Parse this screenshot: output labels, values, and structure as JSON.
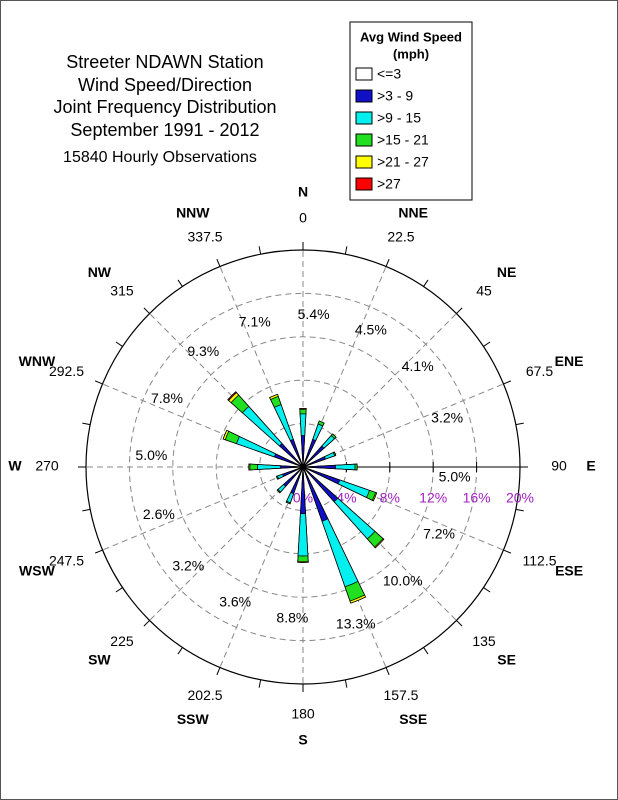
{
  "chart_data": {
    "type": "windrose",
    "title": [
      "Streeter NDAWN Station",
      "Wind Speed/Direction",
      "Joint Frequency Distribution",
      "September 1991 - 2012"
    ],
    "subtitle": "15840 Hourly Observations",
    "legend_title": [
      "Avg Wind Speed",
      "(mph)"
    ],
    "categories": [
      "N",
      "NNE",
      "NE",
      "ENE",
      "E",
      "ESE",
      "SE",
      "SSE",
      "S",
      "SSW",
      "SW",
      "WSW",
      "W",
      "WNW",
      "NW",
      "NNW"
    ],
    "degrees": [
      0,
      22.5,
      45,
      67.5,
      90,
      112.5,
      135,
      157.5,
      180,
      202.5,
      225,
      247.5,
      270,
      292.5,
      315,
      337.5
    ],
    "direction_totals": [
      5.4,
      4.5,
      4.1,
      3.2,
      5.0,
      7.2,
      10.0,
      13.3,
      8.8,
      3.6,
      3.2,
      2.6,
      5.0,
      7.8,
      9.3,
      7.1
    ],
    "direction_total_labels": [
      "5.4%",
      "4.5%",
      "4.1%",
      "3.2%",
      "5.0%",
      "7.2%",
      "10.0%",
      "13.3%",
      "8.8%",
      "3.6%",
      "3.2%",
      "2.6%",
      "5.0%",
      "7.8%",
      "9.3%",
      "7.1%"
    ],
    "series": [
      {
        "name": "<=3",
        "color": "#ffffff",
        "values": [
          0.3,
          0.3,
          0.3,
          0.3,
          0.3,
          0.3,
          0.3,
          0.3,
          0.3,
          0.3,
          0.3,
          0.3,
          0.3,
          0.3,
          0.3,
          0.3
        ]
      },
      {
        "name": ">3 - 9",
        "color": "#1010c8",
        "values": [
          2.6,
          2.4,
          2.3,
          1.9,
          2.7,
          3.3,
          4.0,
          5.0,
          4.0,
          2.3,
          2.1,
          1.7,
          1.8,
          2.5,
          2.6,
          2.4
        ]
      },
      {
        "name": ">9 - 15",
        "color": "#00f0f0",
        "values": [
          2.0,
          1.5,
          1.3,
          0.9,
          1.8,
          2.9,
          4.6,
          6.4,
          3.9,
          0.9,
          0.7,
          0.5,
          2.1,
          3.7,
          4.6,
          3.4
        ]
      },
      {
        "name": ">15 - 21",
        "color": "#20e020",
        "values": [
          0.4,
          0.3,
          0.2,
          0.1,
          0.2,
          0.6,
          1.0,
          1.4,
          0.5,
          0.1,
          0.1,
          0.1,
          0.7,
          1.1,
          1.4,
          0.8
        ]
      },
      {
        "name": ">21 - 27",
        "color": "#ffff00",
        "values": [
          0.1,
          0,
          0,
          0,
          0,
          0.1,
          0.1,
          0.2,
          0.1,
          0,
          0,
          0,
          0.1,
          0.2,
          0.3,
          0.2
        ]
      },
      {
        "name": ">27",
        "color": "#ff0000",
        "values": [
          0,
          0,
          0,
          0,
          0,
          0,
          0,
          0,
          0,
          0,
          0,
          0,
          0,
          0,
          0.1,
          0
        ]
      }
    ],
    "rlim": [
      0,
      20
    ],
    "rticks": [
      {
        "value": 0,
        "label": "0%"
      },
      {
        "value": 4,
        "label": "4%"
      },
      {
        "value": 8,
        "label": "8%"
      },
      {
        "value": 12,
        "label": "12%"
      },
      {
        "value": 16,
        "label": "16%"
      },
      {
        "value": 20,
        "label": "20%"
      }
    ],
    "rtick_color": "#a020c0"
  }
}
